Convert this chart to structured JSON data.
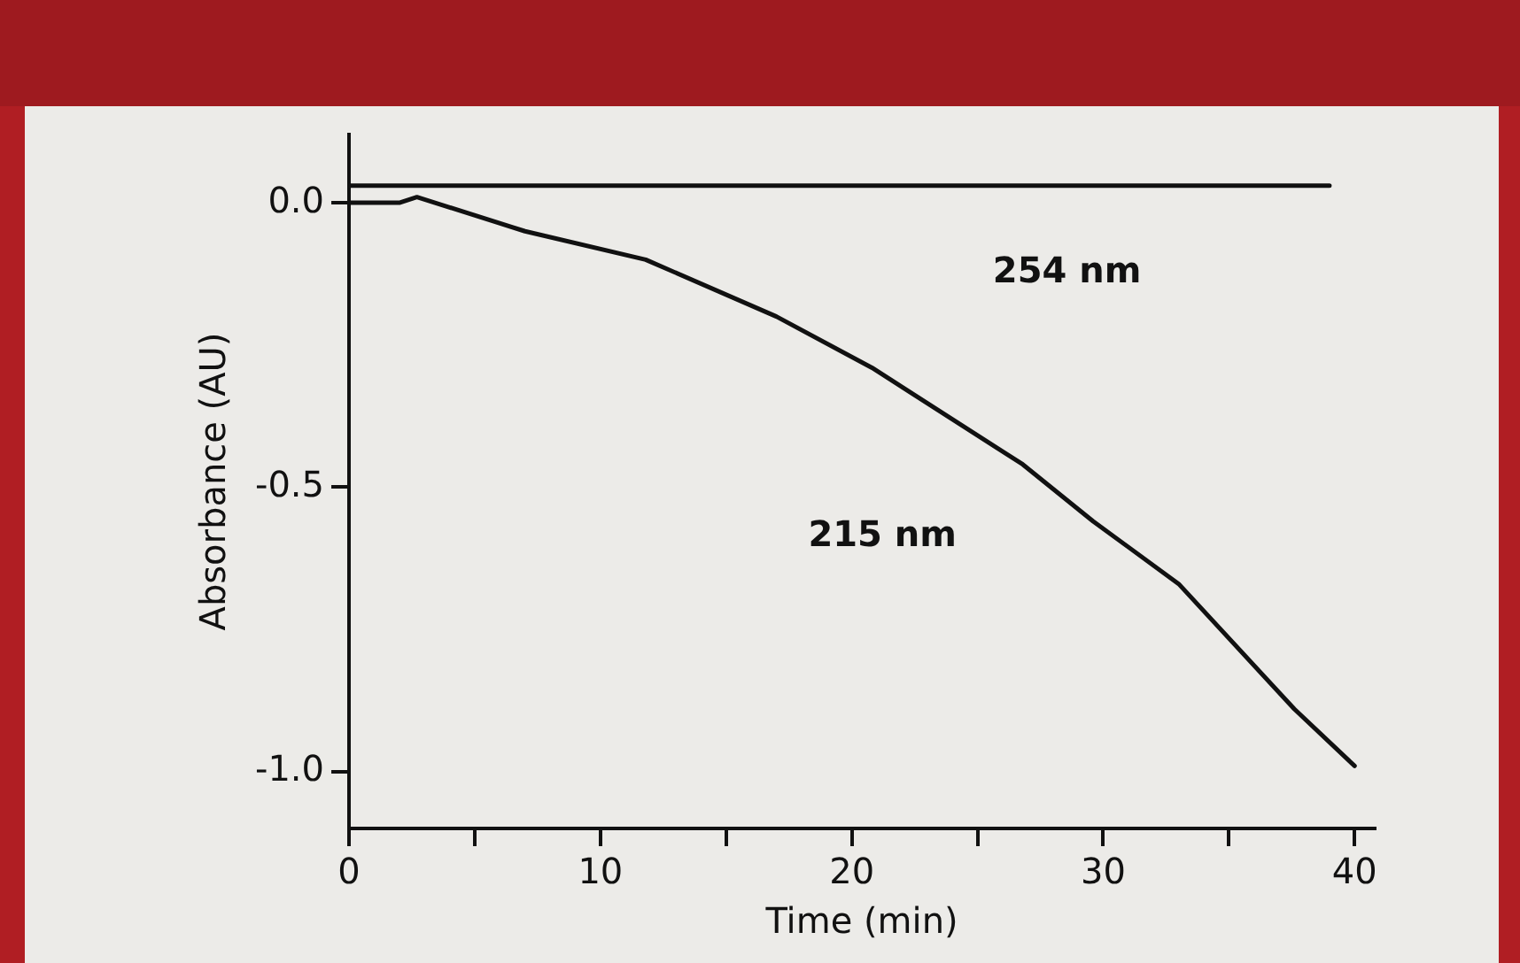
{
  "chart_data": {
    "type": "line",
    "xlabel": "Time (min)",
    "ylabel": "Absorbance (AU)",
    "series": [
      {
        "name": "254 nm",
        "color": "#111111",
        "x": [
          0,
          39
        ],
        "values": [
          0.03,
          0.03
        ]
      },
      {
        "name": "215 nm",
        "color": "#111111",
        "x": [
          0,
          2,
          2.7,
          7,
          11.8,
          17,
          20.8,
          26.8,
          29.6,
          33,
          37.6,
          40
        ],
        "values": [
          0,
          0,
          0.01,
          -0.05,
          -0.1,
          -0.2,
          -0.29,
          -0.46,
          -0.56,
          -0.67,
          -0.89,
          -0.99
        ]
      }
    ],
    "xlim": [
      0,
      40.8
    ],
    "ylim": [
      -1.1,
      0.12
    ],
    "xticks": [
      0,
      {
        "value": 5,
        "label": null
      },
      10,
      {
        "value": 15,
        "label": null
      },
      20,
      {
        "value": 25,
        "label": null
      },
      30,
      {
        "value": 35,
        "label": null
      },
      40
    ],
    "yticks": [
      {
        "value": 0,
        "label": "0.0"
      },
      {
        "value": -0.5,
        "label": "-0.5"
      },
      {
        "value": -1,
        "label": "-1.0"
      }
    ],
    "grid": false,
    "legend": false,
    "marker": "none",
    "line_style": "solid"
  }
}
